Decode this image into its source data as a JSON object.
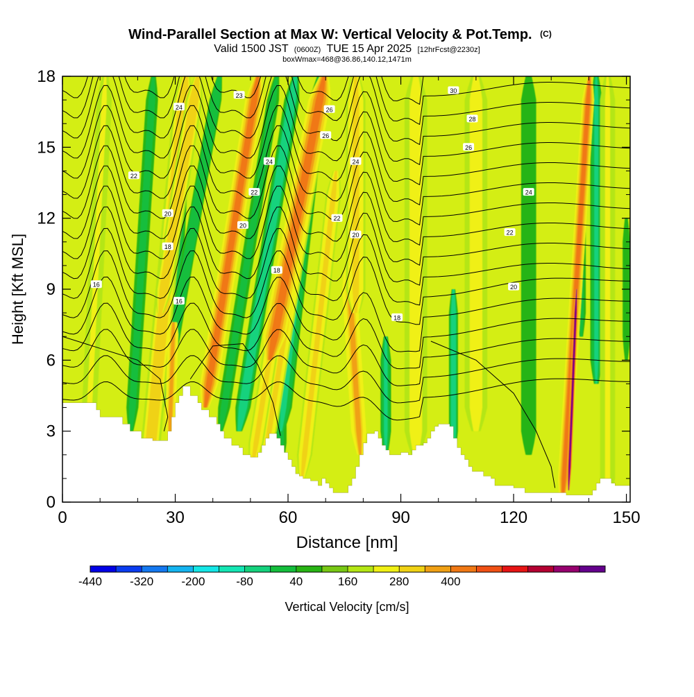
{
  "header": {
    "title_main": "Wind-Parallel Section at Max W: Vertical Velocity & Pot.Temp.",
    "title_mark": "(C)",
    "subtitle_valid": "Valid 1500 JST",
    "subtitle_zulu": "(0600Z)",
    "subtitle_date": "TUE 15 Apr 2025",
    "subtitle_fcst": "[12hrFcst@2230z]",
    "box_info": "boxWmax=468@36.86,140.12,1471m"
  },
  "chart_data": {
    "type": "heatmap",
    "title": "Wind-Parallel Section at Max W: Vertical Velocity & Pot.Temp.",
    "xlabel": "Distance [nm]",
    "ylabel": "Height [Kft MSL]",
    "xlim": [
      0,
      151
    ],
    "ylim": [
      0,
      18
    ],
    "x_ticks": [
      0,
      30,
      60,
      90,
      120,
      150
    ],
    "y_ticks": [
      0,
      3,
      6,
      9,
      12,
      15,
      18
    ],
    "colorbar": {
      "label": "Vertical Velocity [cm/s]",
      "tick_labels": [
        "-440",
        "-320",
        "-200",
        "-80",
        "40",
        "160",
        "280",
        "400"
      ],
      "colors": [
        "#0000e6",
        "#0a3cf0",
        "#1478f0",
        "#14b4f0",
        "#14e6e6",
        "#14e6b4",
        "#14d27d",
        "#14be3c",
        "#28b414",
        "#78c814",
        "#b4e614",
        "#f0f014",
        "#f0d214",
        "#f0a014",
        "#f07814",
        "#f05014",
        "#e61414",
        "#b40032",
        "#96006e",
        "#64008c"
      ]
    },
    "terrain_kft": [
      [
        0,
        4.2
      ],
      [
        3,
        4.2
      ],
      [
        6,
        4.2
      ],
      [
        9,
        3.9
      ],
      [
        10,
        3.6
      ],
      [
        12,
        3.6
      ],
      [
        15,
        3.6
      ],
      [
        16,
        3.3
      ],
      [
        18,
        3.0
      ],
      [
        20,
        3.0
      ],
      [
        21,
        2.7
      ],
      [
        23,
        2.7
      ],
      [
        24,
        2.6
      ],
      [
        27,
        2.6
      ],
      [
        28,
        3.0
      ],
      [
        29,
        3.6
      ],
      [
        30,
        4.2
      ],
      [
        31,
        4.5
      ],
      [
        32,
        4.9
      ],
      [
        33,
        4.9
      ],
      [
        34,
        4.5
      ],
      [
        36,
        4.2
      ],
      [
        37,
        3.9
      ],
      [
        39,
        3.6
      ],
      [
        41,
        3.3
      ],
      [
        42,
        3.0
      ],
      [
        43,
        2.7
      ],
      [
        45,
        2.4
      ],
      [
        47,
        2.3
      ],
      [
        48,
        2.0
      ],
      [
        50,
        1.9
      ],
      [
        52,
        2.1
      ],
      [
        53,
        2.4
      ],
      [
        54,
        2.7
      ],
      [
        55,
        2.9
      ],
      [
        57,
        2.7
      ],
      [
        58,
        2.4
      ],
      [
        59,
        2.1
      ],
      [
        60,
        1.8
      ],
      [
        61,
        1.5
      ],
      [
        62,
        1.2
      ],
      [
        63,
        1.1
      ],
      [
        64,
        1.0
      ],
      [
        66,
        0.9
      ],
      [
        67,
        0.9
      ],
      [
        68,
        0.7
      ],
      [
        69,
        1.0
      ],
      [
        70,
        0.8
      ],
      [
        71,
        0.6
      ],
      [
        72,
        0.4
      ],
      [
        75,
        0.4
      ],
      [
        76,
        0.7
      ],
      [
        77,
        1.0
      ],
      [
        78,
        1.5
      ],
      [
        79,
        2.0
      ],
      [
        80,
        2.5
      ],
      [
        81,
        2.9
      ],
      [
        82,
        2.9
      ],
      [
        83,
        3.0
      ],
      [
        84,
        2.7
      ],
      [
        85,
        2.4
      ],
      [
        86,
        2.2
      ],
      [
        87,
        2.0
      ],
      [
        89,
        2.0
      ],
      [
        90,
        2.1
      ],
      [
        92,
        2.0
      ],
      [
        93,
        2.2
      ],
      [
        94,
        2.4
      ],
      [
        96,
        2.5
      ],
      [
        97,
        2.7
      ],
      [
        98,
        3.0
      ],
      [
        99,
        3.2
      ],
      [
        100,
        3.3
      ],
      [
        101,
        3.3
      ],
      [
        102,
        3.3
      ],
      [
        103,
        3.2
      ],
      [
        104,
        2.7
      ],
      [
        105,
        2.3
      ],
      [
        106,
        2.0
      ],
      [
        107,
        1.8
      ],
      [
        108,
        1.5
      ],
      [
        109,
        1.3
      ],
      [
        110,
        1.3
      ],
      [
        112,
        1.1
      ],
      [
        114,
        1.0
      ],
      [
        115,
        0.7
      ],
      [
        117,
        0.7
      ],
      [
        120,
        0.6
      ],
      [
        122,
        0.6
      ],
      [
        123,
        0.4
      ],
      [
        133,
        0.4
      ],
      [
        134,
        0.3
      ],
      [
        140,
        0.3
      ],
      [
        141,
        0.5
      ],
      [
        142,
        0.8
      ],
      [
        143,
        1.0
      ],
      [
        145,
        1.0
      ],
      [
        146,
        0.8
      ],
      [
        147,
        0.7
      ],
      [
        150,
        0.7
      ],
      [
        151,
        0.7
      ]
    ],
    "updraft_bands": [
      {
        "name": "u1",
        "x_base": 6,
        "dx_per_kft": 0.3,
        "hw": 2.0,
        "z0": 0,
        "z1": 18,
        "w": 60
      },
      {
        "name": "u2",
        "x_base": 22,
        "dx_per_kft": 0.6,
        "hw": 2.6,
        "z0": 0,
        "z1": 18,
        "w": 140
      },
      {
        "name": "u3",
        "x_base": 28,
        "dx_per_kft": 0.2,
        "hw": 1.4,
        "z0": 2.6,
        "z1": 8,
        "w": 170
      },
      {
        "name": "u4",
        "x_base": 18,
        "dx_per_kft": 1.0,
        "hw": 2.2,
        "z0": 8,
        "z1": 18,
        "w": 150
      },
      {
        "name": "u5",
        "x_base": 34,
        "dx_per_kft": 1.0,
        "hw": 2.4,
        "z0": 4,
        "z1": 18,
        "w": 200
      },
      {
        "name": "u6",
        "x_base": 52,
        "dx_per_kft": 1.0,
        "hw": 2.0,
        "z0": 2,
        "z1": 18,
        "w": 120
      },
      {
        "name": "u7",
        "x_base": 49,
        "dx_per_kft": 1.0,
        "hw": 2.0,
        "z0": 1.5,
        "z1": 10,
        "w": 130
      },
      {
        "name": "u8",
        "x_base": 48,
        "dx_per_kft": 1.2,
        "hw": 3.0,
        "z0": 6,
        "z1": 18,
        "w": 240
      },
      {
        "name": "u9",
        "x_base": 63,
        "dx_per_kft": 0.7,
        "hw": 2.0,
        "z0": 1,
        "z1": 14,
        "w": 120
      },
      {
        "name": "u10",
        "x_base": 80,
        "dx_per_kft": -0.4,
        "hw": 2.0,
        "z0": 2,
        "z1": 10,
        "w": 180
      },
      {
        "name": "u11",
        "x_base": 78,
        "dx_per_kft": 0.0,
        "hw": 2.6,
        "z0": 8,
        "z1": 18,
        "w": 110
      },
      {
        "name": "u12",
        "x_base": 94,
        "dx_per_kft": 0.0,
        "hw": 3.0,
        "z0": 2,
        "z1": 18,
        "w": 70
      },
      {
        "name": "u13",
        "x_base": 110,
        "dx_per_kft": 0.0,
        "hw": 3.0,
        "z0": 3,
        "z1": 18,
        "w": 70
      },
      {
        "name": "u14",
        "x_base": 133,
        "dx_per_kft": 0.4,
        "hw": 1.6,
        "z0": 0,
        "z1": 18,
        "w": 210
      },
      {
        "name": "u15",
        "x_base": 134.5,
        "dx_per_kft": 0.25,
        "hw": 0.6,
        "z0": 0.5,
        "z1": 9,
        "w": 440
      },
      {
        "name": "u16",
        "x_base": 145,
        "dx_per_kft": 0.0,
        "hw": 2.0,
        "z0": 0,
        "z1": 18,
        "w": 60
      }
    ],
    "downdraft_bands": [
      {
        "name": "d1",
        "x_base": 17,
        "dx_per_kft": 0.4,
        "hw": 1.6,
        "z0": 3,
        "z1": 18,
        "w": -110
      },
      {
        "name": "d2",
        "x_base": 28,
        "dx_per_kft": 0.3,
        "hw": 1.2,
        "z0": 7,
        "z1": 18,
        "w": -100
      },
      {
        "name": "d3",
        "x_base": 22,
        "dx_per_kft": 1.1,
        "hw": 1.6,
        "z0": 4,
        "z1": 18,
        "w": -130
      },
      {
        "name": "d4",
        "x_base": 39,
        "dx_per_kft": 1.0,
        "hw": 1.6,
        "z0": 3,
        "z1": 18,
        "w": -110
      },
      {
        "name": "d5",
        "x_base": 44,
        "dx_per_kft": 1.0,
        "hw": 2.0,
        "z0": 3,
        "z1": 18,
        "w": -170
      },
      {
        "name": "d6",
        "x_base": 58,
        "dx_per_kft": 0.0,
        "hw": 1.6,
        "z0": 1.5,
        "z1": 8,
        "w": -110
      },
      {
        "name": "d7",
        "x_base": 56,
        "dx_per_kft": 0.7,
        "hw": 2.2,
        "z0": 3,
        "z1": 18,
        "w": -140
      },
      {
        "name": "d8",
        "x_base": 86,
        "dx_per_kft": 0.0,
        "hw": 1.4,
        "z0": 2,
        "z1": 7,
        "w": -140
      },
      {
        "name": "d9",
        "x_base": 104,
        "dx_per_kft": 0.0,
        "hw": 1.2,
        "z0": 2,
        "z1": 9,
        "w": -170
      },
      {
        "name": "d10",
        "x_base": 124,
        "dx_per_kft": 0.0,
        "hw": 2.0,
        "z0": 2,
        "z1": 18,
        "w": -60
      },
      {
        "name": "d11",
        "x_base": 142,
        "dx_per_kft": 0.0,
        "hw": 1.6,
        "z0": 5,
        "z1": 18,
        "w": -140
      },
      {
        "name": "d12",
        "x_base": 138,
        "dx_per_kft": 0.0,
        "hw": 1.2,
        "z0": 7,
        "z1": 13,
        "w": -100
      },
      {
        "name": "d13",
        "x_base": 150,
        "dx_per_kft": 0.0,
        "hw": 1.0,
        "z0": 6,
        "z1": 12,
        "w": -80
      }
    ],
    "theta_contour_labels": [
      {
        "text": "24",
        "x": 31,
        "y": 16.7
      },
      {
        "text": "23",
        "x": 47,
        "y": 17.2
      },
      {
        "text": "30",
        "x": 104,
        "y": 17.4
      },
      {
        "text": "26",
        "x": 71,
        "y": 16.6
      },
      {
        "text": "28",
        "x": 109,
        "y": 16.2
      },
      {
        "text": "26",
        "x": 70,
        "y": 15.5
      },
      {
        "text": "26",
        "x": 108,
        "y": 15.0
      },
      {
        "text": "24",
        "x": 55,
        "y": 14.4
      },
      {
        "text": "24",
        "x": 78,
        "y": 14.4
      },
      {
        "text": "22",
        "x": 19,
        "y": 13.8
      },
      {
        "text": "22",
        "x": 51,
        "y": 13.1
      },
      {
        "text": "24",
        "x": 124,
        "y": 13.1
      },
      {
        "text": "20",
        "x": 28,
        "y": 12.2
      },
      {
        "text": "22",
        "x": 73,
        "y": 12.0
      },
      {
        "text": "20",
        "x": 48,
        "y": 11.7
      },
      {
        "text": "22",
        "x": 119,
        "y": 11.4
      },
      {
        "text": "20",
        "x": 78,
        "y": 11.3
      },
      {
        "text": "18",
        "x": 28,
        "y": 10.8
      },
      {
        "text": "18",
        "x": 57,
        "y": 9.8
      },
      {
        "text": "16",
        "x": 9,
        "y": 9.2
      },
      {
        "text": "20",
        "x": 120,
        "y": 9.1
      },
      {
        "text": "16",
        "x": 31,
        "y": 8.5
      },
      {
        "text": "18",
        "x": 89,
        "y": 7.8
      }
    ]
  }
}
